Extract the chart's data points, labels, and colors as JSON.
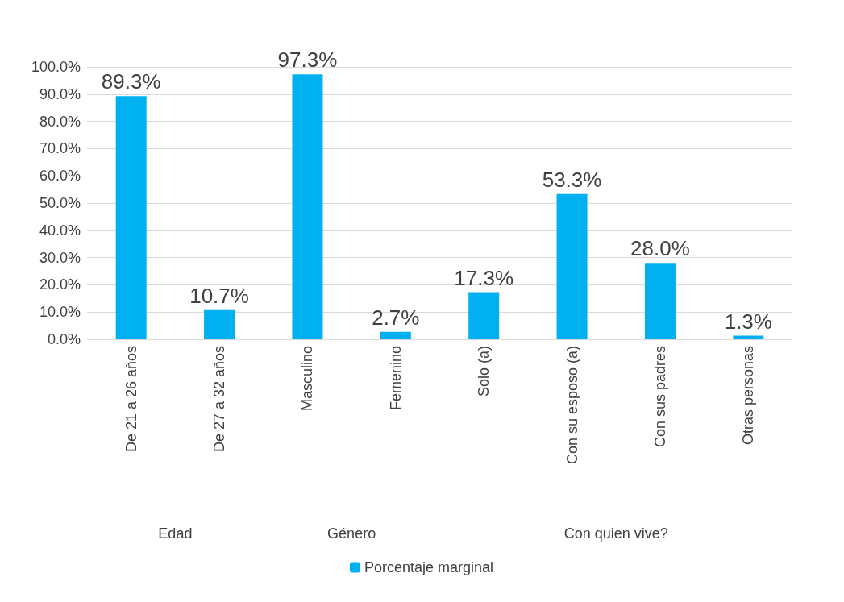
{
  "chart_data": {
    "type": "bar",
    "categories": [
      "De 21 a 26 años",
      "De 27 a 32 años",
      "Masculino",
      "Femenino",
      "Solo (a)",
      "Con su esposo (a)",
      "Con sus padres",
      "Otras personas"
    ],
    "series": [
      {
        "name": "Porcentaje marginal",
        "color": "#00b0f0",
        "values": [
          89.3,
          10.7,
          97.3,
          2.7,
          17.3,
          53.3,
          28.0,
          1.3
        ],
        "value_labels": [
          "89.3%",
          "10.7%",
          "97.3%",
          "2.7%",
          "17.3%",
          "53.3%",
          "28.0%",
          "1.3%"
        ]
      }
    ],
    "ylim": [
      0,
      100
    ],
    "yticks": [
      {
        "value": 0,
        "label": "0.0%"
      },
      {
        "value": 10,
        "label": "10.0%"
      },
      {
        "value": 20,
        "label": "20.0%"
      },
      {
        "value": 30,
        "label": "30.0%"
      },
      {
        "value": 40,
        "label": "40.0%"
      },
      {
        "value": 50,
        "label": "50.0%"
      },
      {
        "value": 60,
        "label": "60.0%"
      },
      {
        "value": 70,
        "label": "70.0%"
      },
      {
        "value": 80,
        "label": "80.0%"
      },
      {
        "value": 90,
        "label": "90.0%"
      },
      {
        "value": 100,
        "label": "100.0%"
      }
    ],
    "annotations": [
      "Edad",
      "Género",
      "Con quien vive?"
    ],
    "grid": "y",
    "legend": "bottom"
  }
}
